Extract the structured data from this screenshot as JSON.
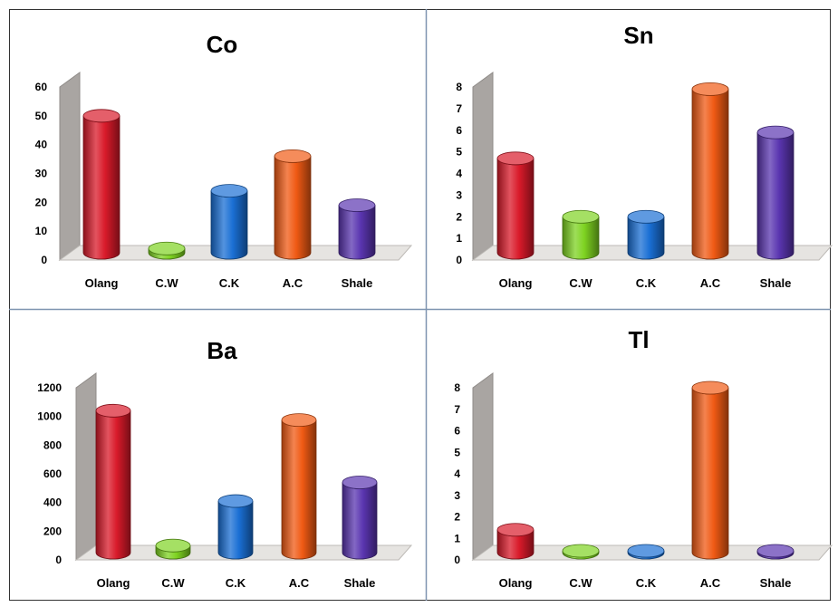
{
  "chart_data": [
    {
      "type": "bar",
      "title": "Co",
      "categories": [
        "Olang",
        "C.W",
        "C.K",
        "A.C",
        "Shale"
      ],
      "values": [
        50,
        4,
        24,
        36,
        19
      ],
      "ylim": [
        0,
        60
      ],
      "yticks": [
        "0",
        "10",
        "20",
        "30",
        "40",
        "50",
        "60"
      ],
      "colors": [
        "#d91a2a",
        "#7ed321",
        "#1a6fd4",
        "#f05a14",
        "#5a35b0"
      ],
      "grid": false
    },
    {
      "type": "bar",
      "title": "Sn",
      "categories": [
        "Olang",
        "C.W",
        "C.K",
        "A.C",
        "Shale"
      ],
      "values": [
        4.7,
        2,
        2,
        7.9,
        5.9
      ],
      "ylim": [
        0,
        8
      ],
      "yticks": [
        "0",
        "1",
        "2",
        "3",
        "4",
        "5",
        "6",
        "7",
        "8"
      ],
      "colors": [
        "#d91a2a",
        "#7ed321",
        "#1a6fd4",
        "#f05a14",
        "#5a35b0"
      ],
      "grid": false
    },
    {
      "type": "bar",
      "title": "Ba",
      "categories": [
        "Olang",
        "C.W",
        "C.K",
        "A.C",
        "Shale"
      ],
      "values": [
        1040,
        100,
        410,
        975,
        540
      ],
      "ylim": [
        0,
        1200
      ],
      "yticks": [
        "0",
        "200",
        "400",
        "600",
        "800",
        "1000",
        "1200"
      ],
      "colors": [
        "#d91a2a",
        "#7ed321",
        "#1a6fd4",
        "#f05a14",
        "#5a35b0"
      ],
      "grid": false
    },
    {
      "type": "bar",
      "title": "Tl",
      "categories": [
        "Olang",
        "C.W",
        "C.K",
        "A.C",
        "Shale"
      ],
      "values": [
        1.4,
        0.4,
        0.3,
        8,
        0.3
      ],
      "ylim": [
        0,
        8
      ],
      "yticks": [
        "0",
        "1",
        "2",
        "3",
        "4",
        "5",
        "6",
        "7",
        "8"
      ],
      "colors": [
        "#d91a2a",
        "#7ed321",
        "#1a6fd4",
        "#f05a14",
        "#5a35b0"
      ],
      "grid": false
    }
  ]
}
